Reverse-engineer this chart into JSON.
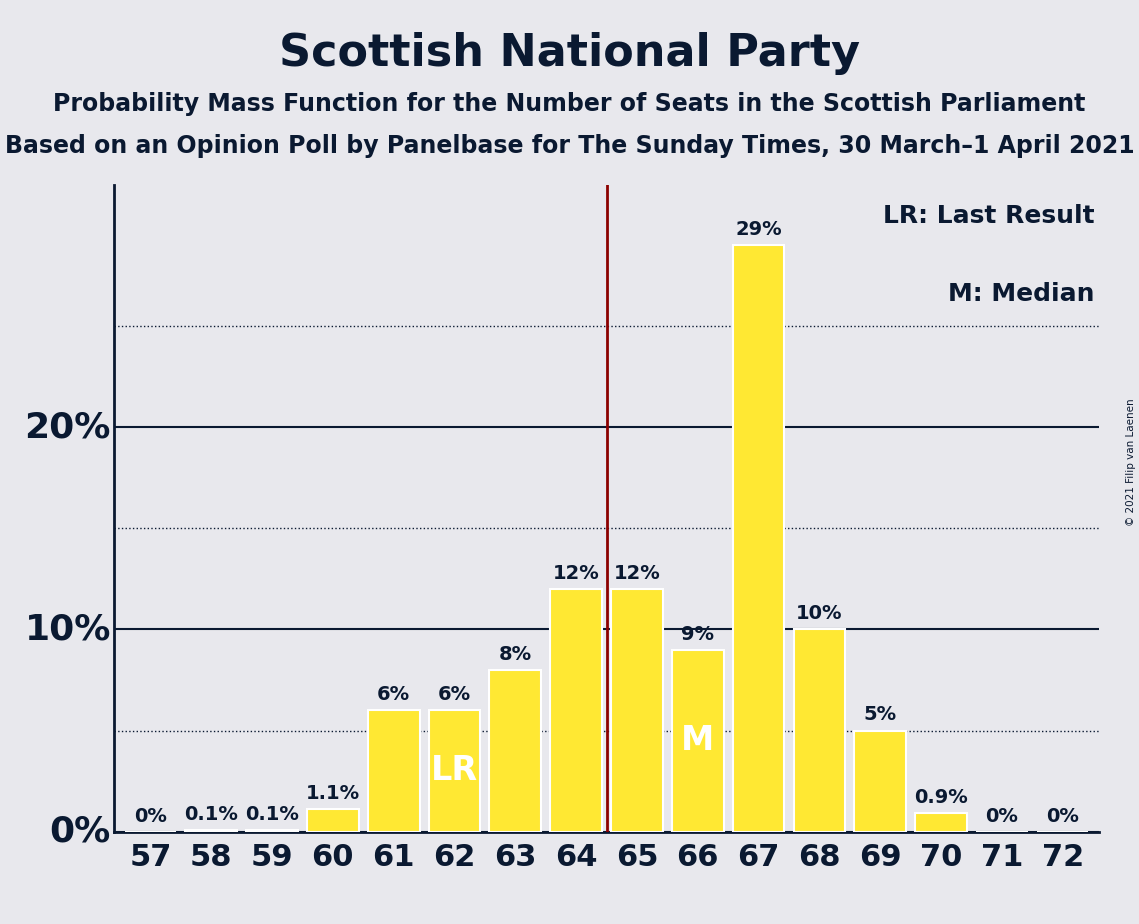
{
  "title": "Scottish National Party",
  "subtitle1": "Probability Mass Function for the Number of Seats in the Scottish Parliament",
  "subtitle2": "Based on an Opinion Poll by Panelbase for The Sunday Times, 30 March–1 April 2021",
  "copyright": "© 2021 Filip van Laenen",
  "categories": [
    57,
    58,
    59,
    60,
    61,
    62,
    63,
    64,
    65,
    66,
    67,
    68,
    69,
    70,
    71,
    72
  ],
  "values": [
    0.0,
    0.1,
    0.1,
    1.1,
    6.0,
    6.0,
    8.0,
    12.0,
    12.0,
    9.0,
    29.0,
    10.0,
    5.0,
    0.9,
    0.0,
    0.0
  ],
  "labels": [
    "0%",
    "0.1%",
    "0.1%",
    "1.1%",
    "6%",
    "6%",
    "8%",
    "12%",
    "12%",
    "9%",
    "29%",
    "10%",
    "5%",
    "0.9%",
    "0%",
    "0%"
  ],
  "bar_color": "#FFE833",
  "bar_edge_color": "#FFFFFF",
  "background_color": "#E8E8ED",
  "text_color": "#0A1931",
  "vline_color": "#8B0000",
  "lr_bar": 62,
  "m_bar": 66,
  "lr_label": "LR",
  "m_label": "M",
  "legend_lr": "LR: Last Result",
  "legend_m": "M: Median",
  "yticks_solid": [
    0,
    10,
    20
  ],
  "yticks_dotted": [
    5,
    15,
    25
  ],
  "ylim": [
    0,
    32
  ],
  "title_fontsize": 32,
  "subtitle1_fontsize": 17,
  "subtitle2_fontsize": 17,
  "tick_fontsize": 22,
  "legend_fontsize": 18,
  "bar_label_fontsize": 14,
  "inner_label_fontsize": 24,
  "ylabel_fontsize": 26
}
